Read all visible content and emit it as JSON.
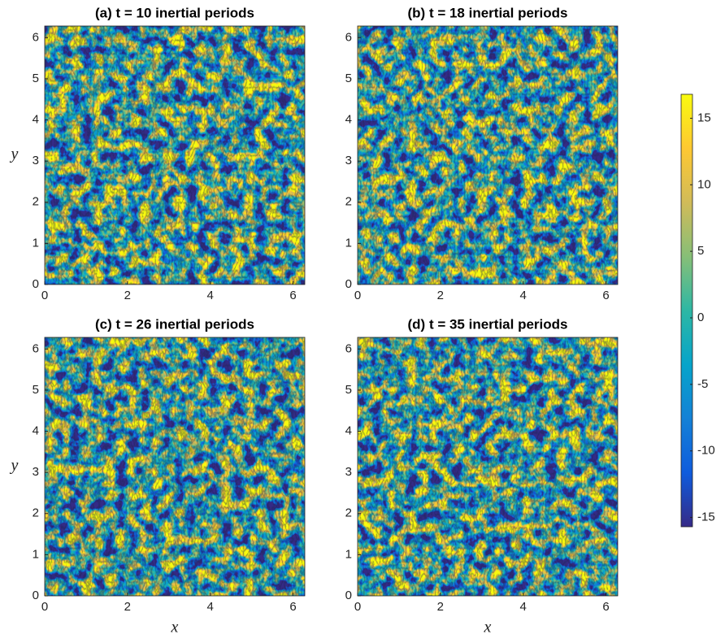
{
  "chart_data": [
    {
      "type": "heatmap",
      "title": "(a) t = 10 inertial periods",
      "ylabel": "y",
      "xlim": [
        0,
        6.2832
      ],
      "ylim": [
        0,
        6.2832
      ],
      "xticks": [
        0,
        2,
        4,
        6
      ],
      "yticks": [
        0,
        1,
        2,
        3,
        4,
        5,
        6
      ]
    },
    {
      "type": "heatmap",
      "title": "(b) t = 18 inertial periods",
      "xlim": [
        0,
        6.2832
      ],
      "ylim": [
        0,
        6.2832
      ],
      "xticks": [
        0,
        2,
        4,
        6
      ],
      "yticks": [
        0,
        1,
        2,
        3,
        4,
        5,
        6
      ]
    },
    {
      "type": "heatmap",
      "title": "(c) t = 26 inertial periods",
      "xlabel": "x",
      "ylabel": "y",
      "xlim": [
        0,
        6.2832
      ],
      "ylim": [
        0,
        6.2832
      ],
      "xticks": [
        0,
        2,
        4,
        6
      ],
      "yticks": [
        0,
        1,
        2,
        3,
        4,
        5,
        6
      ]
    },
    {
      "type": "heatmap",
      "title": "(d) t = 35 inertial periods",
      "xlabel": "x",
      "xlim": [
        0,
        6.2832
      ],
      "ylim": [
        0,
        6.2832
      ],
      "xticks": [
        0,
        2,
        4,
        6
      ],
      "yticks": [
        0,
        1,
        2,
        3,
        4,
        5,
        6
      ]
    }
  ],
  "colorbar": {
    "lim": [
      -15.7,
      16.8
    ],
    "ticks": [
      -15,
      -10,
      -5,
      0,
      5,
      10,
      15
    ],
    "colormap": [
      "#352a87",
      "#0f5cdd",
      "#1481d6",
      "#06a4ca",
      "#2eb7a4",
      "#87bf77",
      "#d1bb59",
      "#fec832",
      "#f9fb0e"
    ]
  }
}
